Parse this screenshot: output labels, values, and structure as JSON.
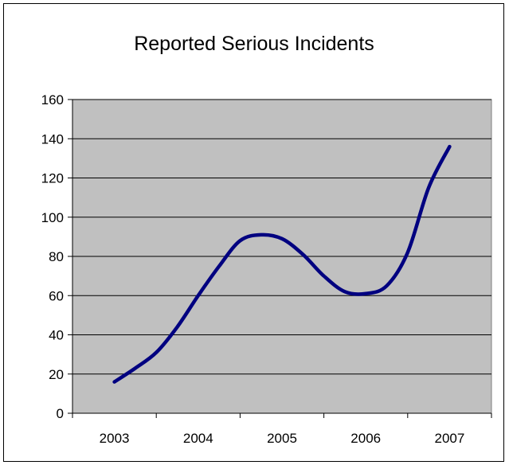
{
  "chart_data": {
    "type": "line",
    "title": "Reported Serious Incidents",
    "xlabel": "",
    "ylabel": "",
    "categories": [
      "2003",
      "2004",
      "2005",
      "2006",
      "2007"
    ],
    "ylim": [
      0,
      160
    ],
    "y_ticks": [
      0,
      20,
      40,
      60,
      80,
      100,
      120,
      140,
      160
    ],
    "grid": "horizontal",
    "legend": "none",
    "plot_background": "#c0c0c0",
    "line_color": "#000080",
    "series": [
      {
        "x": [
          2003,
          2003.25,
          2003.5,
          2003.75,
          2004,
          2004.25,
          2004.5,
          2004.75,
          2005,
          2005.25,
          2005.5,
          2005.75,
          2006,
          2006.25,
          2006.5,
          2006.75,
          2007
        ],
        "values": [
          16,
          23,
          31,
          44,
          60,
          75,
          88,
          91,
          89,
          81,
          70,
          62,
          61,
          65,
          82,
          115,
          136
        ]
      }
    ]
  }
}
